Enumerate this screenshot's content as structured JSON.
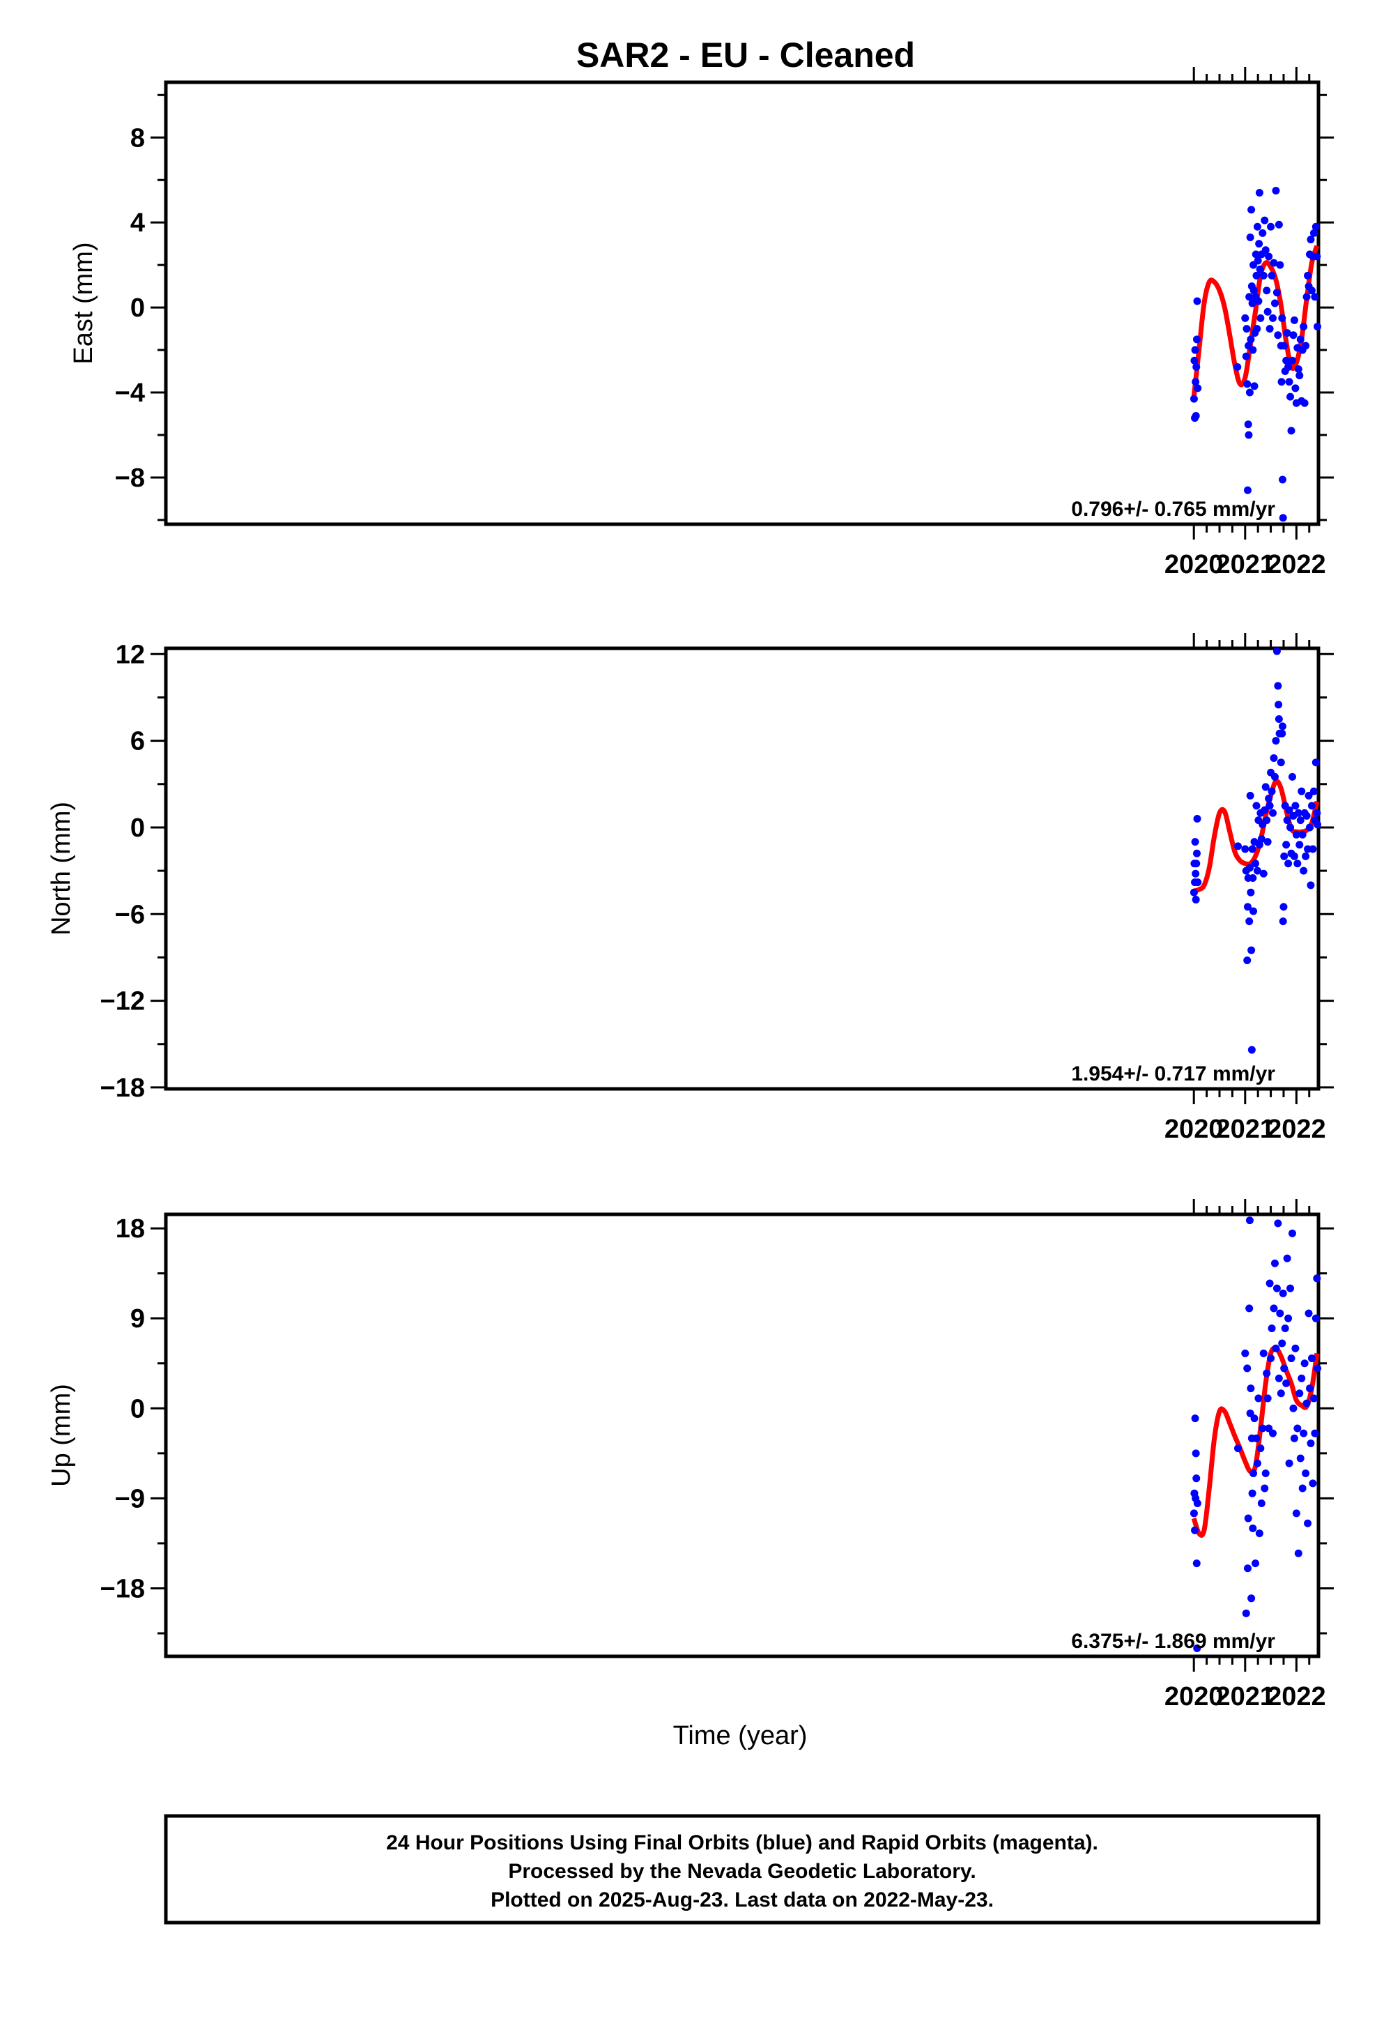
{
  "title": "SAR2  - EU - Cleaned",
  "xlabel": "Time (year)",
  "footer": {
    "lines": [
      "24 Hour Positions Using Final Orbits (blue) and Rapid Orbits (magenta).",
      "Processed by the Nevada Geodetic Laboratory.",
      "Plotted on 2025-Aug-23. Last data on 2022-May-23."
    ]
  },
  "colors": {
    "points": "#0000ff",
    "fit": "#ff0000",
    "axis": "#000000"
  },
  "chart_data": [
    {
      "type": "scatter",
      "ylabel": "East (mm)",
      "rate_label": "0.796+/- 0.765 mm/yr",
      "xlim": [
        1999.95,
        2022.43
      ],
      "ylim": [
        -10.2,
        10.6
      ],
      "x_ticks": [
        2020,
        2021,
        2022
      ],
      "x_tick_labels": [
        "2020",
        "2021",
        "2022"
      ],
      "y_ticks": [
        -8,
        -4,
        0,
        4,
        8
      ],
      "y_tick_labels": [
        "−8",
        "−4",
        "0",
        "4",
        "8"
      ],
      "fit": {
        "x": [
          2020.0,
          2020.1,
          2020.2,
          2020.3,
          2020.4,
          2020.5,
          2020.6,
          2020.7,
          2020.8,
          2020.9,
          2021.0,
          2021.1,
          2021.2,
          2021.3,
          2021.4,
          2021.5,
          2021.6,
          2021.7,
          2021.8,
          2021.9,
          2022.0,
          2022.1,
          2022.2,
          2022.3,
          2022.4
        ],
        "y": [
          -4.2,
          -2.0,
          0.2,
          1.2,
          1.2,
          0.8,
          0.0,
          -1.3,
          -2.7,
          -3.6,
          -3.3,
          -1.8,
          -0.2,
          1.5,
          2.1,
          1.9,
          1.3,
          0.1,
          -1.6,
          -2.8,
          -2.6,
          -1.5,
          0.4,
          2.1,
          2.9
        ]
      },
      "points": {
        "x": [
          2020.003,
          2020.01,
          2020.018,
          2020.025,
          2020.033,
          2020.04,
          2020.048,
          2020.058,
          2020.065,
          2020.075,
          2020.85,
          2021.0,
          2021.02,
          2021.03,
          2021.04,
          2021.05,
          2021.06,
          2021.065,
          2021.07,
          2021.08,
          2021.09,
          2021.1,
          2021.11,
          2021.12,
          2021.13,
          2021.14,
          2021.15,
          2021.16,
          2021.17,
          2021.18,
          2021.19,
          2021.2,
          2021.21,
          2021.22,
          2021.23,
          2021.24,
          2021.25,
          2021.26,
          2021.27,
          2021.28,
          2021.29,
          2021.3,
          2021.32,
          2021.34,
          2021.36,
          2021.38,
          2021.4,
          2021.42,
          2021.44,
          2021.46,
          2021.48,
          2021.5,
          2021.52,
          2021.54,
          2021.56,
          2021.58,
          2021.6,
          2021.62,
          2021.64,
          2021.66,
          2021.68,
          2021.7,
          2021.71,
          2021.72,
          2021.73,
          2021.74,
          2021.76,
          2021.78,
          2021.8,
          2021.82,
          2021.84,
          2021.86,
          2021.88,
          2021.9,
          2021.92,
          2021.94,
          2021.96,
          2021.98,
          2022.0,
          2022.02,
          2022.04,
          2022.06,
          2022.08,
          2022.1,
          2022.12,
          2022.14,
          2022.16,
          2022.18,
          2022.2,
          2022.22,
          2022.24,
          2022.26,
          2022.28,
          2022.3,
          2022.32,
          2022.34,
          2022.36,
          2022.38,
          2022.4,
          2022.41
        ],
        "y": [
          -4.3,
          -2.5,
          -5.2,
          -2.0,
          -3.5,
          -5.1,
          -2.8,
          -1.5,
          0.3,
          -3.8,
          -2.8,
          -0.5,
          -2.3,
          -1.0,
          -3.6,
          -8.6,
          -5.5,
          -1.8,
          -6.0,
          0.5,
          -4.0,
          3.3,
          -1.5,
          4.6,
          1.0,
          0.2,
          -2.0,
          2.0,
          0.8,
          -3.7,
          -1.2,
          0.5,
          2.5,
          1.5,
          -1.0,
          3.8,
          2.2,
          0.3,
          3.0,
          5.4,
          1.8,
          -0.5,
          2.5,
          3.5,
          1.5,
          4.1,
          2.7,
          0.8,
          -0.2,
          2.4,
          -1.0,
          3.8,
          1.5,
          -0.5,
          2.1,
          0.2,
          5.5,
          0.7,
          -1.3,
          3.9,
          2.0,
          -1.8,
          -3.5,
          -0.5,
          -8.1,
          -9.9,
          -1.8,
          -3.0,
          -2.5,
          -1.2,
          -2.8,
          -3.5,
          -4.2,
          -5.8,
          -2.5,
          -1.3,
          -0.6,
          -3.8,
          -4.5,
          -1.9,
          -2.9,
          -3.2,
          -1.5,
          -4.4,
          -2.0,
          -0.9,
          -4.5,
          -1.8,
          0.5,
          1.5,
          1.0,
          2.5,
          3.2,
          0.8,
          2.4,
          3.5,
          0.5,
          3.8,
          2.4,
          -0.9
        ]
      }
    },
    {
      "type": "scatter",
      "ylabel": "North (mm)",
      "rate_label": "1.954+/- 0.717 mm/yr",
      "xlim": [
        1999.95,
        2022.43
      ],
      "ylim": [
        -18.1,
        12.4
      ],
      "x_ticks": [
        2020,
        2021,
        2022
      ],
      "x_tick_labels": [
        "2020",
        "2021",
        "2022"
      ],
      "y_ticks": [
        -18,
        -12,
        -6,
        0,
        6,
        12
      ],
      "y_tick_labels": [
        "−18",
        "−12",
        "−6",
        "0",
        "6",
        "12"
      ],
      "fit": {
        "x": [
          2020.0,
          2020.1,
          2020.2,
          2020.3,
          2020.4,
          2020.5,
          2020.6,
          2020.7,
          2020.8,
          2020.9,
          2021.0,
          2021.1,
          2021.2,
          2021.3,
          2021.4,
          2021.5,
          2021.6,
          2021.7,
          2021.8,
          2021.9,
          2022.0,
          2022.1,
          2022.2,
          2022.3,
          2022.4
        ],
        "y": [
          -4.4,
          -4.3,
          -4.0,
          -2.8,
          -0.6,
          1.0,
          1.1,
          -0.3,
          -1.7,
          -2.3,
          -2.5,
          -2.5,
          -2.0,
          -0.9,
          0.8,
          2.2,
          3.2,
          2.7,
          1.2,
          -0.1,
          -0.3,
          -0.3,
          -0.2,
          0.3,
          1.8
        ]
      },
      "points": {
        "x": [
          2020.003,
          2020.01,
          2020.018,
          2020.025,
          2020.033,
          2020.04,
          2020.048,
          2020.058,
          2020.065,
          2020.075,
          2020.86,
          2021.0,
          2021.02,
          2021.04,
          2021.05,
          2021.06,
          2021.08,
          2021.09,
          2021.1,
          2021.11,
          2021.12,
          2021.13,
          2021.14,
          2021.15,
          2021.16,
          2021.18,
          2021.2,
          2021.22,
          2021.24,
          2021.26,
          2021.28,
          2021.3,
          2021.32,
          2021.34,
          2021.36,
          2021.38,
          2021.4,
          2021.42,
          2021.44,
          2021.46,
          2021.48,
          2021.5,
          2021.52,
          2021.54,
          2021.56,
          2021.58,
          2021.6,
          2021.62,
          2021.64,
          2021.65,
          2021.66,
          2021.67,
          2021.7,
          2021.72,
          2021.73,
          2021.74,
          2021.75,
          2021.76,
          2021.78,
          2021.8,
          2021.82,
          2021.84,
          2021.86,
          2021.88,
          2021.9,
          2021.92,
          2021.94,
          2021.96,
          2021.98,
          2022.0,
          2022.02,
          2022.04,
          2022.06,
          2022.08,
          2022.1,
          2022.12,
          2022.14,
          2022.16,
          2022.18,
          2022.2,
          2022.22,
          2022.24,
          2022.26,
          2022.28,
          2022.3,
          2022.32,
          2022.34,
          2022.36,
          2022.38,
          2022.4,
          2022.41
        ],
        "y": [
          -4.5,
          -2.5,
          -3.8,
          -1.0,
          -3.2,
          -5.0,
          -2.5,
          -1.8,
          0.6,
          -3.8,
          -1.3,
          -1.5,
          -3.0,
          -9.2,
          -5.5,
          -3.5,
          -6.5,
          -2.8,
          2.2,
          -4.5,
          -8.5,
          -15.4,
          -1.5,
          -3.5,
          -5.8,
          -1.0,
          -2.5,
          1.5,
          -3.0,
          0.5,
          -1.2,
          1.0,
          -0.8,
          0.2,
          -3.2,
          1.2,
          2.8,
          0.5,
          -1.0,
          2.0,
          1.5,
          3.8,
          2.5,
          1.0,
          4.8,
          3.5,
          6.0,
          12.2,
          9.8,
          8.5,
          7.5,
          6.5,
          4.5,
          6.5,
          7.0,
          -6.5,
          -5.5,
          -2.0,
          1.5,
          -1.2,
          0.5,
          -2.5,
          1.2,
          0.0,
          -1.8,
          3.5,
          0.8,
          -2.0,
          1.5,
          -0.5,
          -2.5,
          1.0,
          -1.2,
          0.5,
          2.5,
          -0.5,
          -3.0,
          1.0,
          -2.0,
          0.8,
          -1.5,
          2.2,
          0.0,
          -4.0,
          1.5,
          -1.5,
          2.5,
          0.5,
          4.5,
          1.0,
          0.2
        ]
      }
    },
    {
      "type": "scatter",
      "ylabel": "Up (mm)",
      "rate_label": "6.375+/- 1.869 mm/yr",
      "xlim": [
        1999.95,
        2022.43
      ],
      "ylim": [
        -24.8,
        19.4
      ],
      "x_ticks": [
        2020,
        2021,
        2022
      ],
      "x_tick_labels": [
        "2020",
        "2021",
        "2022"
      ],
      "y_ticks": [
        -18,
        -9,
        0,
        9,
        18
      ],
      "y_tick_labels": [
        "−18",
        "−9",
        "0",
        "9",
        "18"
      ],
      "fit": {
        "x": [
          2020.0,
          2020.1,
          2020.2,
          2020.3,
          2020.4,
          2020.5,
          2020.6,
          2020.7,
          2020.8,
          2020.9,
          2021.0,
          2021.1,
          2021.2,
          2021.3,
          2021.4,
          2021.5,
          2021.6,
          2021.7,
          2021.8,
          2021.9,
          2022.0,
          2022.1,
          2022.2,
          2022.3,
          2022.4
        ],
        "y": [
          -11.0,
          -12.5,
          -12.2,
          -8.0,
          -3.0,
          -0.3,
          -0.3,
          -1.5,
          -2.8,
          -4.0,
          -5.3,
          -6.3,
          -5.8,
          -2.0,
          2.5,
          5.5,
          6.0,
          5.2,
          3.8,
          2.5,
          0.8,
          0.3,
          0.2,
          2.0,
          5.5
        ]
      },
      "points": {
        "x": [
          2020.003,
          2020.01,
          2020.018,
          2020.025,
          2020.033,
          2020.04,
          2020.048,
          2020.055,
          2020.062,
          2020.07,
          2020.86,
          2021.0,
          2021.02,
          2021.04,
          2021.05,
          2021.06,
          2021.08,
          2021.09,
          2021.1,
          2021.11,
          2021.12,
          2021.13,
          2021.14,
          2021.15,
          2021.16,
          2021.18,
          2021.2,
          2021.22,
          2021.24,
          2021.26,
          2021.28,
          2021.3,
          2021.32,
          2021.34,
          2021.36,
          2021.38,
          2021.4,
          2021.42,
          2021.44,
          2021.46,
          2021.48,
          2021.5,
          2021.52,
          2021.54,
          2021.56,
          2021.58,
          2021.6,
          2021.62,
          2021.64,
          2021.66,
          2021.68,
          2021.7,
          2021.72,
          2021.74,
          2021.76,
          2021.78,
          2021.8,
          2021.82,
          2021.84,
          2021.86,
          2021.88,
          2021.9,
          2021.92,
          2021.94,
          2021.96,
          2021.98,
          2022.0,
          2022.02,
          2022.04,
          2022.06,
          2022.08,
          2022.1,
          2022.12,
          2022.14,
          2022.16,
          2022.18,
          2022.2,
          2022.22,
          2022.24,
          2022.26,
          2022.28,
          2022.3,
          2022.32,
          2022.34,
          2022.36,
          2022.38,
          2022.4,
          2022.41
        ],
        "y": [
          -10.5,
          -8.5,
          -12.2,
          -1.0,
          -9.0,
          -4.5,
          -7.0,
          -15.5,
          -24.0,
          -9.5,
          -4.0,
          5.5,
          -20.5,
          4.0,
          -16.0,
          -11.0,
          10.0,
          18.8,
          -0.5,
          2.0,
          -19.0,
          -3.0,
          -8.5,
          -12.0,
          -6.5,
          -1.0,
          -15.5,
          -3.0,
          -5.5,
          1.0,
          -12.5,
          -4.0,
          -9.5,
          -2.0,
          5.5,
          -8.0,
          -6.5,
          3.5,
          1.0,
          -2.0,
          12.5,
          5.0,
          8.0,
          -2.5,
          10.0,
          14.5,
          6.0,
          12.0,
          18.5,
          3.0,
          9.5,
          1.5,
          6.5,
          11.5,
          4.0,
          8.0,
          2.5,
          15.0,
          9.0,
          -5.5,
          12.0,
          5.0,
          17.5,
          0.0,
          -3.0,
          6.0,
          -10.5,
          -2.0,
          -14.5,
          1.5,
          -5.0,
          3.0,
          -8.0,
          -2.5,
          4.5,
          -6.5,
          0.5,
          -11.5,
          9.5,
          2.0,
          -3.5,
          5.0,
          -7.5,
          1.0,
          -2.5,
          9.0,
          13.0,
          4.0
        ]
      }
    }
  ]
}
